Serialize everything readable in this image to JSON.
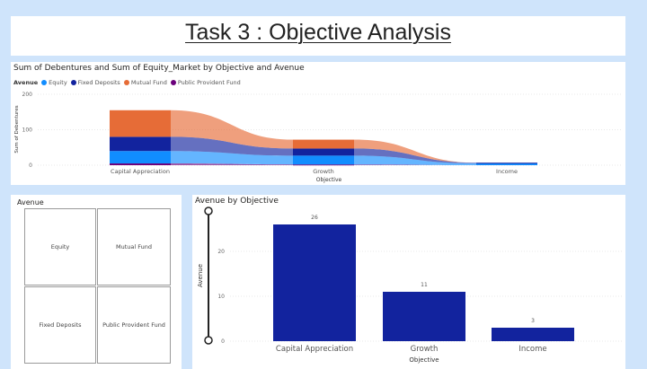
{
  "page": {
    "title": "Task 3 : Objective Analysis"
  },
  "ribbon_chart": {
    "title": "Sum of Debentures and Sum of Equity_Market by Objective and Avenue",
    "legend_title": "Avenue",
    "legend": [
      {
        "name": "Equity",
        "color": "#118dff"
      },
      {
        "name": "Fixed Deposits",
        "color": "#12239e"
      },
      {
        "name": "Mutual Fund",
        "color": "#e66c37"
      },
      {
        "name": "Public Provident Fund",
        "color": "#6b007b"
      }
    ],
    "ylabel": "Sum of Debentures",
    "xlabel": "Objective",
    "yticks": [
      "200",
      "100",
      "0"
    ]
  },
  "slicer": {
    "title": "Avenue",
    "items": [
      "Equity",
      "Mutual Fund",
      "Fixed Deposits",
      "Public Provident Fund"
    ]
  },
  "bar_chart": {
    "title": "Avenue by Objective",
    "ylabel": "Avenue",
    "xlabel": "Objective",
    "yticks": [
      "20",
      "10",
      "0"
    ],
    "color": "#12239e",
    "categories": [
      "Capital Appreciation",
      "Growth",
      "Income"
    ],
    "value_labels": [
      "26",
      "11",
      "3"
    ]
  },
  "chart_data": [
    {
      "type": "area",
      "title": "Sum of Debentures and Sum of Equity_Market by Objective and Avenue",
      "xlabel": "Objective",
      "ylabel": "Sum of Debentures",
      "categories": [
        "Capital Appreciation",
        "Growth",
        "Income"
      ],
      "ylim": [
        0,
        200
      ],
      "series": [
        {
          "name": "Public Provident Fund",
          "values": [
            5,
            2,
            0
          ]
        },
        {
          "name": "Equity",
          "values": [
            35,
            25,
            5
          ]
        },
        {
          "name": "Fixed Deposits",
          "values": [
            40,
            20,
            2
          ]
        },
        {
          "name": "Mutual Fund",
          "values": [
            75,
            25,
            0
          ]
        }
      ],
      "legend": "top-left"
    },
    {
      "type": "bar",
      "title": "Avenue by Objective",
      "xlabel": "Objective",
      "ylabel": "Avenue",
      "categories": [
        "Capital Appreciation",
        "Growth",
        "Income"
      ],
      "values": [
        26,
        11,
        3
      ],
      "ylim": [
        0,
        30
      ]
    }
  ]
}
